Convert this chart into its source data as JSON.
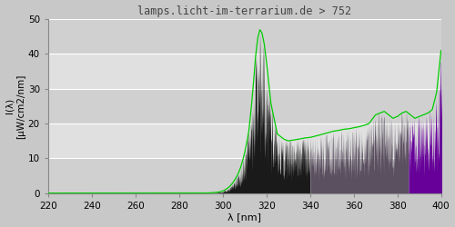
{
  "title": "lamps.licht-im-terrarium.de > 752",
  "xlabel": "λ [nm]",
  "ylabel": "I(λ)\n[µW/cm2/nm]",
  "xlim": [
    220,
    400
  ],
  "ylim": [
    0,
    50
  ],
  "xticks": [
    220,
    240,
    260,
    280,
    300,
    320,
    340,
    360,
    380,
    400
  ],
  "yticks": [
    0,
    10,
    20,
    30,
    40,
    50
  ],
  "fig_bg_color": "#c8c8c8",
  "plot_bg_color": "#e0e0e0",
  "grid_color": "#ffffff",
  "line_color": "#00cc00",
  "region_uvb_color": "#1a1a1a",
  "region_uva1_color": "#5a5060",
  "region_uva2_color": "#660099",
  "uvb_start": 295,
  "uvb_end": 340,
  "uva1_start": 340,
  "uva1_end": 385,
  "uva2_start": 385,
  "uva2_end": 401,
  "green_wl": [
    220,
    270,
    290,
    293,
    295,
    297,
    299,
    300,
    301,
    302,
    303,
    304,
    305,
    306,
    307,
    308,
    309,
    310,
    311,
    312,
    313,
    314,
    315,
    316,
    317,
    318,
    319,
    320,
    322,
    325,
    328,
    330,
    332,
    335,
    337,
    340,
    342,
    345,
    348,
    350,
    353,
    355,
    358,
    360,
    362,
    365,
    367,
    370,
    372,
    374,
    376,
    378,
    380,
    382,
    384,
    386,
    388,
    390,
    392,
    394,
    396,
    398,
    400
  ],
  "green_vals": [
    0.0,
    0.0,
    0.0,
    0.0,
    0.1,
    0.2,
    0.4,
    0.6,
    0.9,
    1.3,
    1.8,
    2.5,
    3.3,
    4.3,
    5.5,
    7.0,
    9.0,
    11.5,
    14.5,
    18.0,
    24.0,
    31.0,
    39.0,
    44.5,
    47.0,
    46.0,
    43.0,
    38.0,
    26.0,
    17.0,
    15.5,
    15.0,
    15.2,
    15.5,
    15.8,
    16.0,
    16.3,
    16.8,
    17.3,
    17.7,
    18.0,
    18.3,
    18.5,
    18.8,
    19.0,
    19.5,
    20.0,
    22.5,
    23.0,
    23.5,
    22.5,
    21.5,
    22.0,
    23.0,
    23.5,
    22.5,
    21.5,
    22.0,
    22.5,
    23.0,
    24.0,
    29.0,
    41.0
  ],
  "spec_seed": 1234,
  "spec_wl_start": 295,
  "spec_wl_end": 401,
  "spec_n_points": 1060
}
